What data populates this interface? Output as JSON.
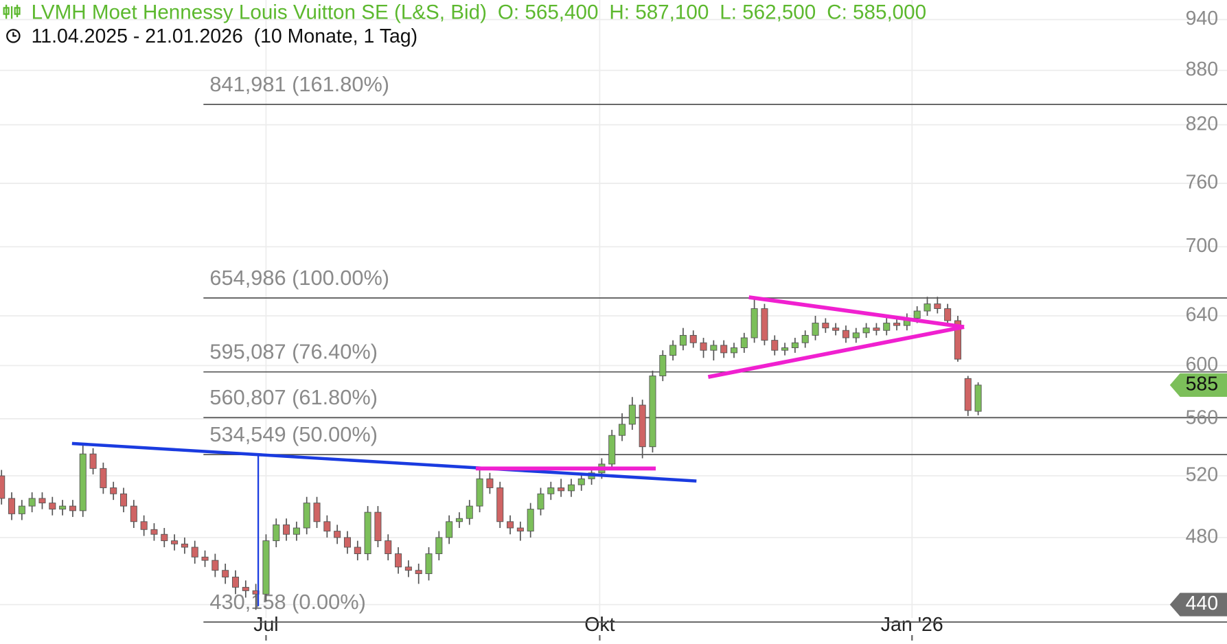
{
  "chart_data": {
    "type": "candlestick",
    "title": "LVMH Moet Hennessy Louis Vuitton SE (L&S, Bid)",
    "ohlc_labels": [
      "O: 565,400",
      "H: 587,100",
      "L: 562,500",
      "C: 585,000"
    ],
    "subtitle": "11.04.2025 - 21.01.2026  (10 Monate, 1 Tag)",
    "log_scale": true,
    "grid": true,
    "up_color": "#7cbf5a",
    "down_color": "#cf6464",
    "ylim": [
      440,
      940
    ],
    "yticks": [
      440,
      480,
      520,
      560,
      600,
      640,
      700,
      760,
      820,
      880,
      940
    ],
    "xlim": [
      -0.15,
      115.23
    ],
    "xticks": [
      {
        "value": 26,
        "label": "Jul"
      },
      {
        "value": 58.8,
        "label": "Okt"
      },
      {
        "value": 89.5,
        "label": "Jan '26"
      }
    ],
    "fib_levels": [
      {
        "value": 841.981,
        "label": "841,981 (161.80%)"
      },
      {
        "value": 654.986,
        "label": "654,986 (100.00%)"
      },
      {
        "value": 595.087,
        "label": "595,087 (76.40%)"
      },
      {
        "value": 560.807,
        "label": "560,807 (61.80%)"
      },
      {
        "value": 534.549,
        "label": "534,549 (50.00%)"
      },
      {
        "value": 430.158,
        "label": "430,158 (0.00%)"
      }
    ],
    "open": [
      520,
      505,
      495,
      500,
      505,
      502,
      498,
      500,
      497,
      535,
      525,
      512,
      508,
      500,
      490,
      485,
      482,
      478,
      476,
      474,
      468,
      466,
      460,
      456,
      450,
      448,
      446,
      478,
      488,
      482,
      486,
      502,
      490,
      484,
      480,
      474,
      470,
      496,
      478,
      470,
      462,
      460,
      458,
      470,
      480,
      490,
      492,
      500,
      518,
      512,
      490,
      486,
      484,
      498,
      508,
      512,
      510,
      514,
      518,
      522,
      528,
      548,
      556,
      570,
      540,
      592,
      608,
      616,
      624,
      618,
      612,
      616,
      610,
      614,
      622,
      646,
      620,
      612,
      614,
      618,
      624,
      634,
      630,
      628,
      622,
      626,
      630,
      628,
      634,
      632,
      638,
      644,
      650,
      646,
      636,
      590,
      565.4
    ],
    "high": [
      524,
      509,
      504,
      509,
      509,
      506,
      504,
      504,
      542,
      539,
      529,
      516,
      512,
      504,
      494,
      489,
      486,
      482,
      480,
      478,
      472,
      470,
      464,
      460,
      454,
      452,
      482,
      492,
      492,
      490,
      506,
      506,
      494,
      488,
      484,
      478,
      500,
      500,
      482,
      474,
      466,
      464,
      474,
      484,
      494,
      496,
      504,
      524,
      522,
      516,
      494,
      490,
      502,
      512,
      516,
      518,
      518,
      522,
      526,
      532,
      552,
      564,
      576,
      574,
      596,
      612,
      620,
      630,
      628,
      622,
      620,
      620,
      618,
      626,
      656,
      650,
      624,
      618,
      622,
      628,
      640,
      638,
      634,
      632,
      630,
      634,
      634,
      638,
      638,
      642,
      648,
      656,
      656,
      650,
      640,
      592,
      587.1
    ],
    "low": [
      501,
      491,
      491,
      496,
      498,
      494,
      494,
      493,
      493,
      521,
      508,
      504,
      496,
      486,
      481,
      478,
      474,
      472,
      470,
      464,
      462,
      456,
      452,
      446,
      444,
      437,
      442,
      474,
      478,
      478,
      482,
      486,
      480,
      476,
      470,
      466,
      466,
      474,
      466,
      458,
      456,
      452,
      454,
      466,
      476,
      486,
      488,
      496,
      508,
      486,
      482,
      478,
      480,
      494,
      504,
      506,
      506,
      510,
      514,
      518,
      524,
      544,
      552,
      532,
      536,
      588,
      604,
      612,
      614,
      606,
      604,
      606,
      606,
      610,
      618,
      616,
      608,
      608,
      610,
      614,
      620,
      626,
      624,
      618,
      618,
      622,
      624,
      624,
      628,
      628,
      634,
      640,
      642,
      632,
      603,
      562,
      562.5
    ],
    "close": [
      505,
      495,
      500,
      505,
      502,
      498,
      500,
      497,
      535,
      525,
      512,
      508,
      500,
      490,
      485,
      482,
      478,
      476,
      474,
      468,
      466,
      460,
      456,
      450,
      448,
      446,
      478,
      488,
      482,
      486,
      502,
      490,
      484,
      480,
      474,
      470,
      496,
      478,
      470,
      462,
      460,
      458,
      470,
      480,
      490,
      492,
      500,
      518,
      512,
      490,
      486,
      484,
      498,
      508,
      512,
      510,
      514,
      518,
      522,
      528,
      548,
      556,
      570,
      540,
      592,
      608,
      616,
      624,
      618,
      612,
      616,
      610,
      614,
      622,
      646,
      620,
      612,
      614,
      618,
      624,
      634,
      630,
      628,
      622,
      626,
      630,
      628,
      634,
      632,
      638,
      644,
      650,
      646,
      636,
      605,
      566,
      585
    ]
  }
}
